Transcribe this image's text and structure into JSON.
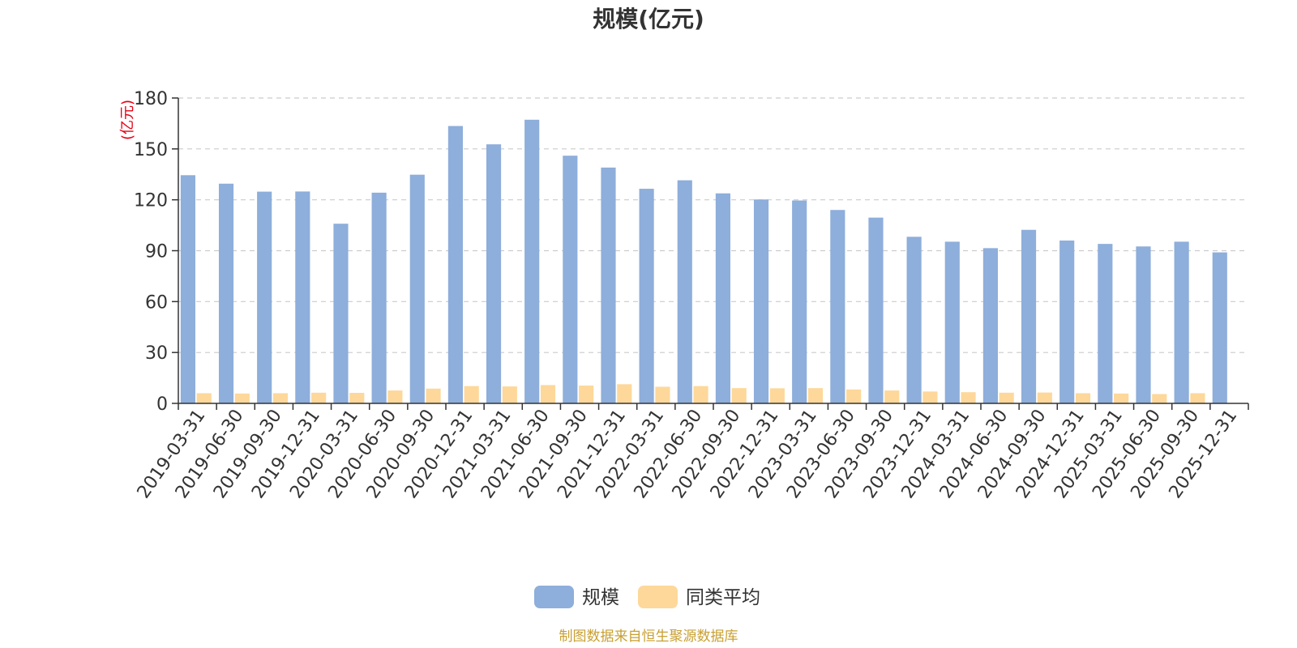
{
  "chart_data": {
    "type": "bar",
    "title": "规模(亿元)",
    "ylabel": "(亿元)",
    "ylim": [
      0,
      180
    ],
    "yticks": [
      0,
      30,
      60,
      90,
      120,
      150,
      180
    ],
    "grid": true,
    "legend_position": "bottom",
    "categories": [
      "2019-03-31",
      "2019-06-30",
      "2019-09-30",
      "2019-12-31",
      "2020-03-31",
      "2020-06-30",
      "2020-09-30",
      "2020-12-31",
      "2021-03-31",
      "2021-06-30",
      "2021-09-30",
      "2021-12-31",
      "2022-03-31",
      "2022-06-30",
      "2022-09-30",
      "2022-12-31",
      "2023-03-31",
      "2023-06-30",
      "2023-09-30",
      "2023-12-31",
      "2024-03-31",
      "2024-06-30",
      "2024-09-30",
      "2024-12-31",
      "2025-03-31",
      "2025-06-30",
      "2025-09-30",
      "2025-12-31"
    ],
    "series": [
      {
        "name": "规模",
        "color": "#8eaedb",
        "values": [
          134.5,
          129.5,
          124.8,
          124.9,
          105.9,
          124.2,
          134.8,
          163.5,
          152.7,
          167.2,
          146.0,
          139.0,
          126.5,
          131.5,
          123.8,
          120.2,
          119.6,
          114.0,
          109.5,
          98.2,
          95.3,
          91.5,
          102.3,
          96.0,
          94.0,
          92.5,
          95.3,
          89.0
        ]
      },
      {
        "name": "同类平均",
        "color": "#fdd89a",
        "values": [
          6.0,
          5.8,
          6.0,
          6.3,
          6.2,
          7.6,
          8.7,
          10.2,
          10.0,
          10.8,
          10.5,
          11.3,
          9.8,
          10.2,
          9.0,
          8.9,
          9.0,
          8.2,
          7.6,
          7.0,
          6.6,
          6.3,
          6.4,
          6.0,
          5.8,
          5.5,
          6.0,
          0
        ]
      }
    ]
  },
  "footer": {
    "source": "制图数据来自恒生聚源数据库"
  }
}
